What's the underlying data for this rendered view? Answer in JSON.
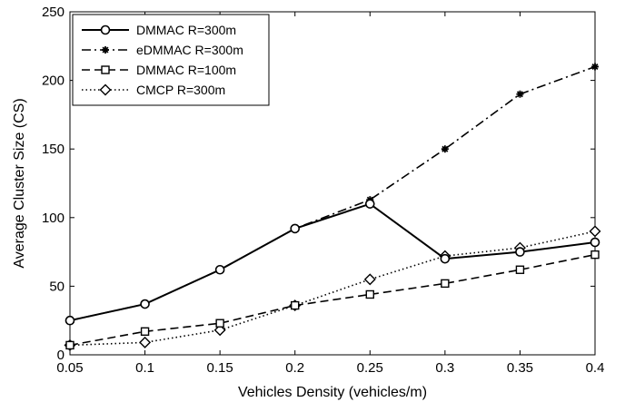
{
  "chart_data": {
    "type": "line",
    "title": "",
    "xlabel": "Vehicles Density (vehicles/m)",
    "ylabel": "Average Cluster Size (CS)",
    "x": [
      0.05,
      0.1,
      0.15,
      0.2,
      0.25,
      0.3,
      0.35,
      0.4
    ],
    "xlim": [
      0.05,
      0.4
    ],
    "ylim": [
      0,
      250
    ],
    "xticks": [
      "0.05",
      "0.1",
      "0.15",
      "0.2",
      "0.25",
      "0.3",
      "0.35",
      "0.4"
    ],
    "yticks": [
      "0",
      "50",
      "100",
      "150",
      "200",
      "250"
    ],
    "grid": false,
    "legend_position": "top-left",
    "series": [
      {
        "name": "DMMAC R=300m",
        "values": [
          25,
          37,
          62,
          92,
          110,
          70,
          75,
          82
        ],
        "line_style": "solid",
        "marker": "circle",
        "color": "#000000"
      },
      {
        "name": "eDMMAC R=300m",
        "values": [
          25,
          37,
          62,
          92,
          113,
          150,
          190,
          210
        ],
        "line_style": "dash-dot",
        "marker": "asterisk",
        "color": "#000000"
      },
      {
        "name": "DMMAC R=100m",
        "values": [
          7,
          17,
          23,
          36,
          44,
          52,
          62,
          73
        ],
        "line_style": "dashed",
        "marker": "square",
        "color": "#000000"
      },
      {
        "name": "CMCP R=300m",
        "values": [
          7,
          9,
          18,
          36,
          55,
          72,
          78,
          90
        ],
        "line_style": "dotted",
        "marker": "diamond",
        "color": "#000000"
      }
    ]
  }
}
